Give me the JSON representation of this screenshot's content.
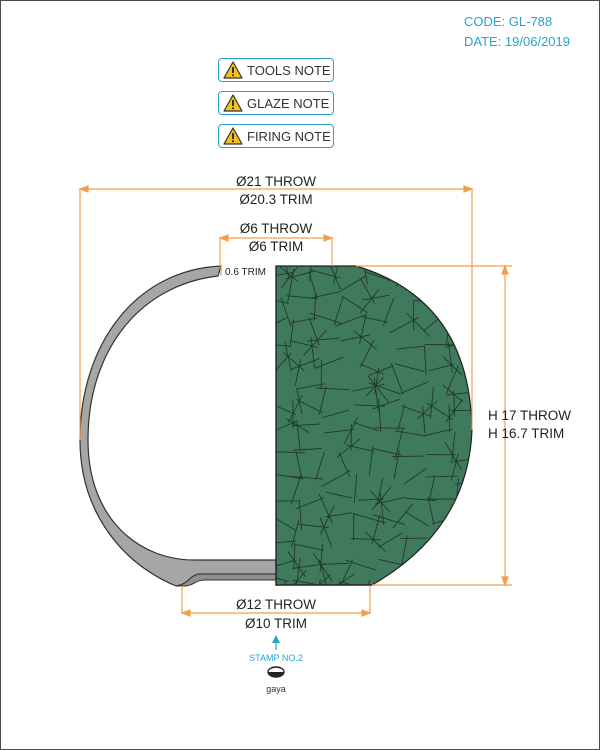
{
  "meta": {
    "code": "CODE: GL-788",
    "date": "DATE: 19/06/2019"
  },
  "notes": [
    {
      "label": "TOOLS NOTE",
      "icon": "warning-icon"
    },
    {
      "label": "GLAZE NOTE",
      "icon": "warning-icon"
    },
    {
      "label": "FIRING NOTE",
      "icon": "warning-icon"
    }
  ],
  "dimensions": {
    "outer_throw": "Ø21 THROW",
    "outer_trim": "Ø20.3 TRIM",
    "rim_throw": "Ø6 THROW",
    "rim_trim": "Ø6 TRIM",
    "wall_trim": "0.6 TRIM",
    "height_throw": "H 17 THROW",
    "height_trim": "H 16.7 TRIM",
    "foot_throw": "Ø12 THROW",
    "foot_trim": "Ø10 TRIM"
  },
  "stamp": {
    "label": "STAMP NO.2",
    "brand": "gaya"
  },
  "colors": {
    "accent": "#2aa3c9",
    "dimension": "#f0a050",
    "section": "#a6a6a6",
    "glaze": "#3f7a5c"
  }
}
